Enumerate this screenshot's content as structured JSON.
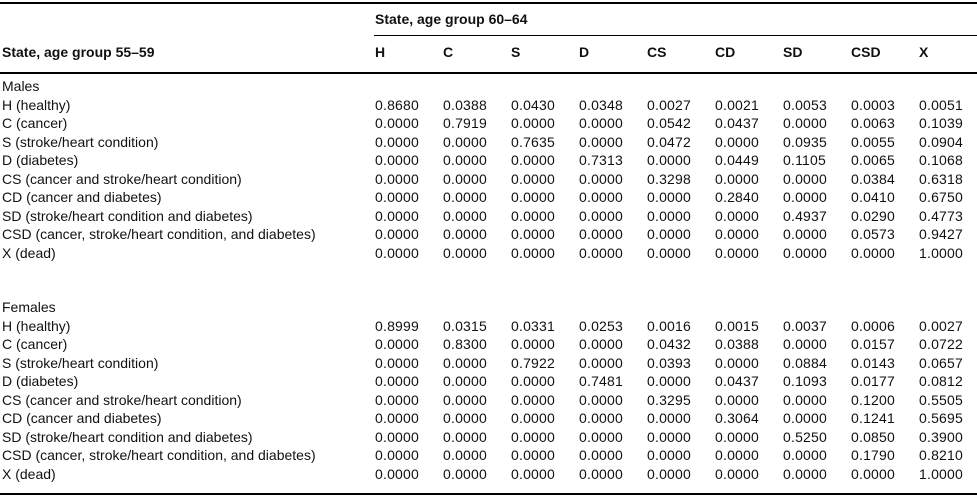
{
  "table": {
    "row_group_header": "State, age group 55–59",
    "col_group_header": "State, age group 60–64",
    "columns": [
      "H",
      "C",
      "S",
      "D",
      "CS",
      "CD",
      "SD",
      "CSD",
      "X"
    ],
    "sections": [
      {
        "label": "Males",
        "rows": [
          {
            "label": "H (healthy)",
            "values": [
              "0.8680",
              "0.0388",
              "0.0430",
              "0.0348",
              "0.0027",
              "0.0021",
              "0.0053",
              "0.0003",
              "0.0051"
            ]
          },
          {
            "label": "C (cancer)",
            "values": [
              "0.0000",
              "0.7919",
              "0.0000",
              "0.0000",
              "0.0542",
              "0.0437",
              "0.0000",
              "0.0063",
              "0.1039"
            ]
          },
          {
            "label": "S (stroke/heart condition)",
            "values": [
              "0.0000",
              "0.0000",
              "0.7635",
              "0.0000",
              "0.0472",
              "0.0000",
              "0.0935",
              "0.0055",
              "0.0904"
            ]
          },
          {
            "label": "D (diabetes)",
            "values": [
              "0.0000",
              "0.0000",
              "0.0000",
              "0.7313",
              "0.0000",
              "0.0449",
              "0.1105",
              "0.0065",
              "0.1068"
            ]
          },
          {
            "label": "CS (cancer and stroke/heart condition)",
            "values": [
              "0.0000",
              "0.0000",
              "0.0000",
              "0.0000",
              "0.3298",
              "0.0000",
              "0.0000",
              "0.0384",
              "0.6318"
            ]
          },
          {
            "label": "CD (cancer and diabetes)",
            "values": [
              "0.0000",
              "0.0000",
              "0.0000",
              "0.0000",
              "0.0000",
              "0.2840",
              "0.0000",
              "0.0410",
              "0.6750"
            ]
          },
          {
            "label": "SD (stroke/heart condition and diabetes)",
            "values": [
              "0.0000",
              "0.0000",
              "0.0000",
              "0.0000",
              "0.0000",
              "0.0000",
              "0.4937",
              "0.0290",
              "0.4773"
            ]
          },
          {
            "label": "CSD (cancer, stroke/heart condition, and diabetes)",
            "values": [
              "0.0000",
              "0.0000",
              "0.0000",
              "0.0000",
              "0.0000",
              "0.0000",
              "0.0000",
              "0.0573",
              "0.9427"
            ]
          },
          {
            "label": "X (dead)",
            "values": [
              "0.0000",
              "0.0000",
              "0.0000",
              "0.0000",
              "0.0000",
              "0.0000",
              "0.0000",
              "0.0000",
              "1.0000"
            ]
          }
        ]
      },
      {
        "label": "Females",
        "rows": [
          {
            "label": "H (healthy)",
            "values": [
              "0.8999",
              "0.0315",
              "0.0331",
              "0.0253",
              "0.0016",
              "0.0015",
              "0.0037",
              "0.0006",
              "0.0027"
            ]
          },
          {
            "label": "C (cancer)",
            "values": [
              "0.0000",
              "0.8300",
              "0.0000",
              "0.0000",
              "0.0432",
              "0.0388",
              "0.0000",
              "0.0157",
              "0.0722"
            ]
          },
          {
            "label": "S (stroke/heart condition)",
            "values": [
              "0.0000",
              "0.0000",
              "0.7922",
              "0.0000",
              "0.0393",
              "0.0000",
              "0.0884",
              "0.0143",
              "0.0657"
            ]
          },
          {
            "label": "D (diabetes)",
            "values": [
              "0.0000",
              "0.0000",
              "0.0000",
              "0.7481",
              "0.0000",
              "0.0437",
              "0.1093",
              "0.0177",
              "0.0812"
            ]
          },
          {
            "label": "CS (cancer and stroke/heart condition)",
            "values": [
              "0.0000",
              "0.0000",
              "0.0000",
              "0.0000",
              "0.3295",
              "0.0000",
              "0.0000",
              "0.1200",
              "0.5505"
            ]
          },
          {
            "label": "CD (cancer and diabetes)",
            "values": [
              "0.0000",
              "0.0000",
              "0.0000",
              "0.0000",
              "0.0000",
              "0.3064",
              "0.0000",
              "0.1241",
              "0.5695"
            ]
          },
          {
            "label": "SD (stroke/heart condition and diabetes)",
            "values": [
              "0.0000",
              "0.0000",
              "0.0000",
              "0.0000",
              "0.0000",
              "0.0000",
              "0.5250",
              "0.0850",
              "0.3900"
            ]
          },
          {
            "label": "CSD (cancer, stroke/heart condition, and diabetes)",
            "values": [
              "0.0000",
              "0.0000",
              "0.0000",
              "0.0000",
              "0.0000",
              "0.0000",
              "0.0000",
              "0.1790",
              "0.8210"
            ]
          },
          {
            "label": "X (dead)",
            "values": [
              "0.0000",
              "0.0000",
              "0.0000",
              "0.0000",
              "0.0000",
              "0.0000",
              "0.0000",
              "0.0000",
              "1.0000"
            ]
          }
        ]
      }
    ],
    "colors": {
      "text": "#111111",
      "rule": "#000000",
      "background": "#ffffff"
    }
  }
}
